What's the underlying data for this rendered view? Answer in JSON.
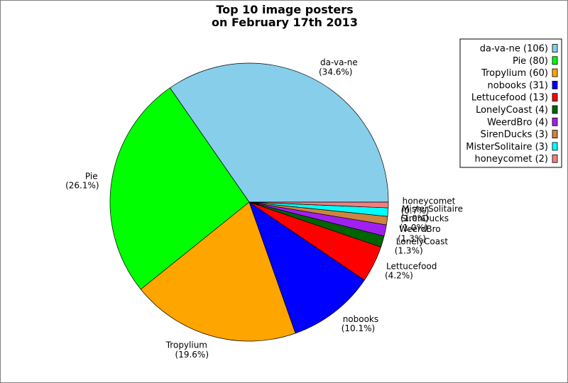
{
  "chart_data": {
    "type": "pie",
    "title": [
      "Top 10 image posters",
      "on February 17th 2013"
    ],
    "slices": [
      {
        "label": "da-va-ne",
        "value": 106,
        "percent": "34.6%",
        "legend": "da-va-ne (106)",
        "color": "#87ceeb"
      },
      {
        "label": "Pie",
        "value": 80,
        "percent": "26.1%",
        "legend": "Pie (80)",
        "color": "#00ff00"
      },
      {
        "label": "Tropylium",
        "value": 60,
        "percent": "19.6%",
        "legend": "Tropylium (60)",
        "color": "#ffa500"
      },
      {
        "label": "nobooks",
        "value": 31,
        "percent": "10.1%",
        "legend": "nobooks (31)",
        "color": "#0000ff"
      },
      {
        "label": "Lettucefood",
        "value": 13,
        "percent": "4.2%",
        "legend": "Lettucefood (13)",
        "color": "#ff0000"
      },
      {
        "label": "LonelyCoast",
        "value": 4,
        "percent": "1.3%",
        "legend": "LonelyCoast (4)",
        "color": "#006400"
      },
      {
        "label": "WeerdBro",
        "value": 4,
        "percent": "1.3%",
        "legend": "WeerdBro (4)",
        "color": "#a020f0"
      },
      {
        "label": "SirenDucks",
        "value": 3,
        "percent": "1.0%",
        "legend": "SirenDucks (3)",
        "color": "#cd853f"
      },
      {
        "label": "MisterSolitaire",
        "value": 3,
        "percent": "1.0%",
        "legend": "MisterSolitaire (3)",
        "color": "#00ffff"
      },
      {
        "label": "honeycomet",
        "value": 2,
        "percent": "0.7%",
        "legend": "honeycomet (2)",
        "color": "#f08080"
      }
    ],
    "legend_position": "top-right",
    "start_angle": "0 degrees (3 o'clock)",
    "direction": "counter-clockwise"
  }
}
